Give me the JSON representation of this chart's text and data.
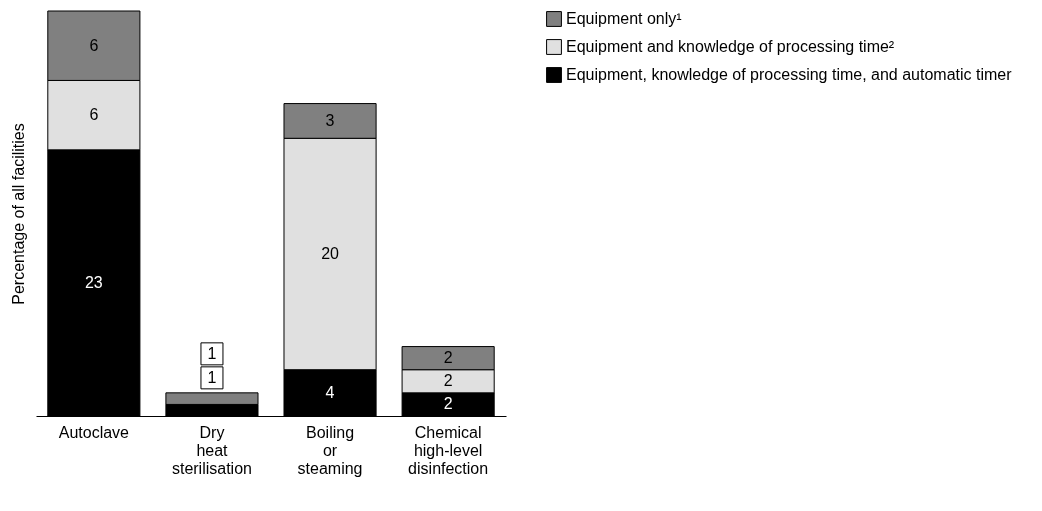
{
  "chart_data": {
    "type": "bar",
    "stacked": true,
    "ylabel": "Percentage of all facilities",
    "categories": [
      "Autoclave",
      "Dry heat sterilisation",
      "Boiling or steaming",
      "Chemical high-level disinfection"
    ],
    "series": [
      {
        "name": "Equipment, knowledge of processing time, and automatic timer",
        "color": "#000000",
        "values": [
          23,
          1,
          4,
          2
        ]
      },
      {
        "name": "Equipment and knowledge of processing time²",
        "color": "#e0e0e0",
        "values": [
          6,
          null,
          20,
          2
        ]
      },
      {
        "name": "Equipment only¹",
        "color": "#808080",
        "values": [
          6,
          1,
          3,
          2
        ]
      }
    ],
    "data_labels": true,
    "legend": "right",
    "grid": false
  }
}
